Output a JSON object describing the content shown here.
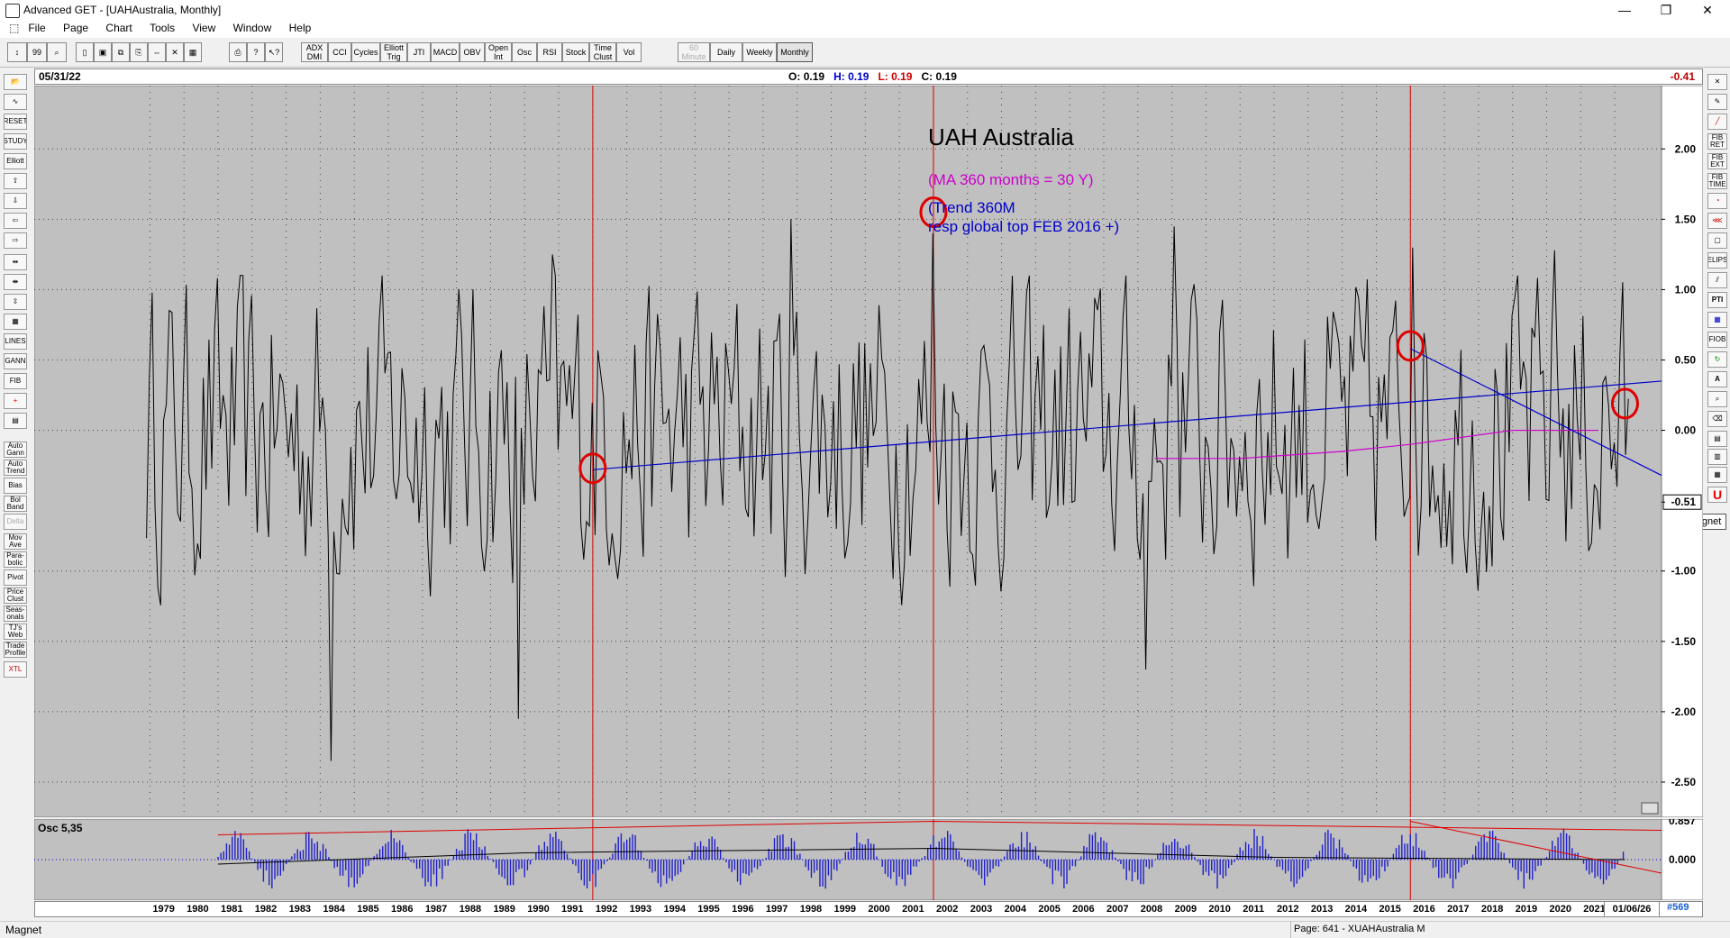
{
  "window": {
    "title": "Advanced GET - [UAHAustralia, Monthly]",
    "minimize": "—",
    "restore": "❐",
    "close": "✕"
  },
  "menu": [
    "File",
    "Page",
    "Chart",
    "Tools",
    "View",
    "Window",
    "Help"
  ],
  "toolbar": {
    "left_icons": [
      "cursor-icon",
      "quote-icon",
      "zoom-icon",
      "new-icon",
      "save-icon",
      "copy-icon",
      "paste-icon",
      "scroll-icon",
      "delete-icon",
      "grid-icon",
      "print-icon",
      "help-icon",
      "context-help-icon"
    ],
    "studies": [
      "ADX DMI",
      "CCI",
      "Cycles",
      "Elliott Trig",
      "JTI",
      "MACD",
      "OBV",
      "Open Int",
      "Osc",
      "RSI",
      "Stock",
      "Time Clust",
      "Vol"
    ],
    "periods": [
      "60 Minute",
      "Daily",
      "Weekly",
      "Monthly"
    ],
    "selected_period": "Monthly"
  },
  "left_tools": [
    "Auto Gann",
    "Auto Trend",
    "Bias",
    "Bol Band",
    "Delta",
    "Mov Ave",
    "Para-bolic",
    "Pivot",
    "Price Clust",
    "Seas-onals",
    "TJ's Web",
    "Trade Profile",
    "XTL"
  ],
  "left_top_tools": [
    "RESET",
    "STUDY",
    "Elliott",
    "LINES",
    "GANN",
    "FIB"
  ],
  "right_tools": [
    "FIB RET",
    "FIB EXT",
    "FIB TIME",
    "ELIPS",
    "PTI",
    "FIOB",
    "A"
  ],
  "magnet_tooltip": "Magnet",
  "info": {
    "date": "05/31/22",
    "open_label": "O:",
    "open": "0.19",
    "high_label": "H:",
    "high": "0.19",
    "low_label": "L:",
    "low": "0.19",
    "close_label": "C:",
    "close": "0.19",
    "last": "-0.41"
  },
  "annotations": {
    "title": "UAH Australia",
    "ma_note": "(MA 360 months = 30 Y)",
    "trend_note": "(Trend 360M",
    "trend_note2": "resp global top FEB 2016 +)"
  },
  "colors": {
    "chart_bg": "#c0c0c0",
    "price": "#000000",
    "trend": "#0000cc",
    "ma": "#cc00cc",
    "marker": "#e00000",
    "osc_bars": "#2020cc"
  },
  "chart_data": {
    "type": "line",
    "title": "UAH Australia",
    "x_range": [
      1978.25,
      2022.42
    ],
    "ylim": [
      -2.75,
      2.45
    ],
    "y_ticks": [
      "2.00",
      "1.50",
      "1.00",
      "0.50",
      "0.00",
      "-0.51",
      "-1.00",
      "-1.50",
      "-2.00",
      "-2.50"
    ],
    "current_value_label": "-0.51",
    "x_ticks": [
      "1979",
      "1980",
      "1981",
      "1982",
      "1983",
      "1984",
      "1985",
      "1986",
      "1987",
      "1988",
      "1989",
      "1990",
      "1991",
      "1992",
      "1993",
      "1994",
      "1995",
      "1996",
      "1997",
      "1998",
      "1999",
      "2000",
      "2001",
      "2002",
      "2003",
      "2004",
      "2005",
      "2006",
      "2007",
      "2008",
      "2009",
      "2010",
      "2011",
      "2012",
      "2013",
      "2014",
      "2015",
      "2016",
      "2017",
      "2018",
      "2019",
      "2020",
      "2021",
      "2022"
    ],
    "series_year_range": [
      1978.9,
      2022.4
    ],
    "notable_points": [
      {
        "year": 1984.3,
        "value": -2.35
      },
      {
        "year": 1989.8,
        "value": -2.05
      },
      {
        "year": 1990.8,
        "value": 1.25
      },
      {
        "year": 1997.8,
        "value": 1.5
      },
      {
        "year": 2002.0,
        "value": 1.4
      },
      {
        "year": 2008.2,
        "value": -1.7
      },
      {
        "year": 2009.1,
        "value": 1.45
      },
      {
        "year": 2016.1,
        "value": 1.3
      },
      {
        "year": 2020.2,
        "value": 1.28
      },
      {
        "year": 2021.3,
        "value": -0.8
      }
    ],
    "trend_line": {
      "x": [
        1992.0,
        2024.9
      ],
      "y": [
        -0.28,
        0.35
      ]
    },
    "trend_line2": {
      "x": [
        2016.0,
        2024.9
      ],
      "y": [
        0.58,
        -0.32
      ]
    },
    "moving_average": {
      "x": [
        2008.5,
        2011.0,
        2014.0,
        2016.0,
        2019.0,
        2021.5
      ],
      "y": [
        -0.2,
        -0.2,
        -0.15,
        -0.1,
        0.0,
        0.0
      ]
    },
    "vertical_markers": [
      1992.0,
      2002.0,
      2016.0
    ],
    "circles": [
      {
        "year": 1992.0,
        "value": -0.27
      },
      {
        "year": 2002.0,
        "value": 1.55
      },
      {
        "year": 2016.0,
        "value": 0.6
      },
      {
        "year": 2022.3,
        "value": 0.19
      }
    ]
  },
  "osc": {
    "label": "Osc 5,35",
    "ticks": [
      "0.857",
      "0.000"
    ],
    "ylim": [
      -0.9,
      0.9
    ],
    "envelope_upper_red": {
      "x": [
        1981.0,
        2002.0,
        2024.5
      ],
      "y": [
        0.55,
        0.85,
        0.65
      ]
    },
    "envelope_red2": {
      "x": [
        2016.0,
        2024.9
      ],
      "y": [
        0.85,
        -0.3
      ]
    },
    "signal_line": {
      "x": [
        1981.0,
        1990.0,
        2002.0,
        2012.0,
        2022.3
      ],
      "y": [
        -0.1,
        0.15,
        0.25,
        0.05,
        0.0
      ]
    }
  },
  "time_axis_right_date": "01/06/26",
  "bar_count": "#569",
  "status": {
    "left": "Magnet",
    "page": "Page: 641 - XUAHAustralia M"
  }
}
